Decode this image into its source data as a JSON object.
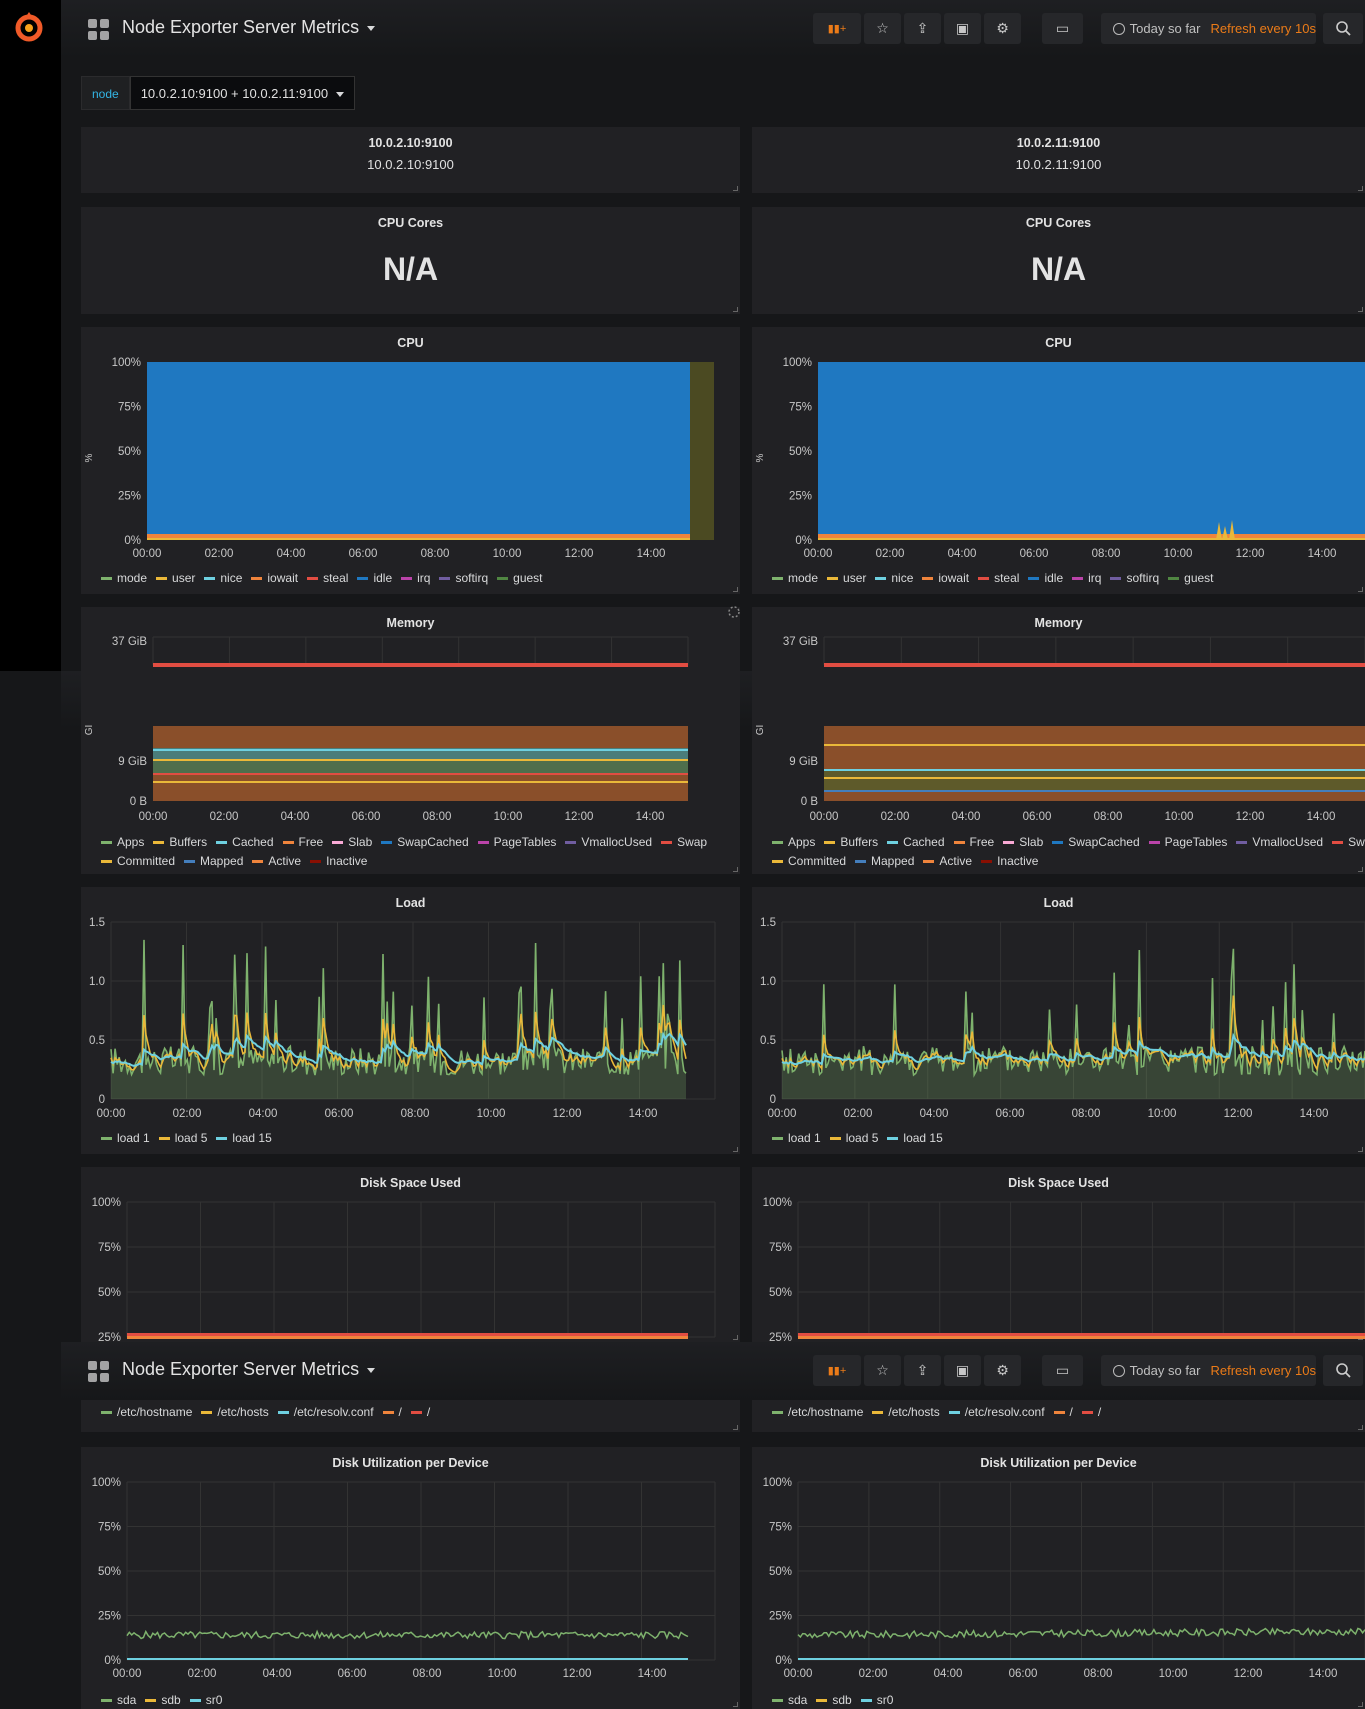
{
  "dashboard": {
    "title": "Node Exporter Server Metrics",
    "time_range": "Today so far",
    "refresh": "Refresh every 10s"
  },
  "icons": {
    "add_panel": "add-panel-icon",
    "star": "star-icon",
    "share": "share-icon",
    "save": "save-icon",
    "settings": "gear-icon",
    "tv": "tv-monitor-icon",
    "clock": "clock-icon",
    "zoom": "zoom-out-icon"
  },
  "variable": {
    "label": "node",
    "value": "10.0.2.10:9100 + 10.0.2.11:9100"
  },
  "nodes": [
    {
      "title": "10.0.2.10:9100",
      "value": "10.0.2.10:9100"
    },
    {
      "title": "10.0.2.11:9100",
      "value": "10.0.2.11:9100"
    }
  ],
  "cpu_cores": {
    "title": "CPU Cores",
    "value": "N/A"
  },
  "cpu": {
    "title": "CPU",
    "ylabel": "%",
    "yticks": [
      "100%",
      "75%",
      "50%",
      "25%",
      "0%"
    ],
    "xticks": [
      "00:00",
      "02:00",
      "04:00",
      "06:00",
      "08:00",
      "10:00",
      "12:00",
      "14:00"
    ],
    "legend": [
      {
        "name": "mode",
        "color": "#7eb26d"
      },
      {
        "name": "user",
        "color": "#eab839"
      },
      {
        "name": "nice",
        "color": "#6ed0e0"
      },
      {
        "name": "iowait",
        "color": "#ef843c"
      },
      {
        "name": "steal",
        "color": "#e24d42"
      },
      {
        "name": "idle",
        "color": "#1f78c1"
      },
      {
        "name": "irq",
        "color": "#ba43a9"
      },
      {
        "name": "softirq",
        "color": "#705da0"
      },
      {
        "name": "guest",
        "color": "#508642"
      }
    ]
  },
  "memory": {
    "title": "Memory",
    "ylabel": "GI",
    "ytop": "37 GiB",
    "ymid": "9 GiB",
    "ybottom": "0 B",
    "xticks": [
      "00:00",
      "02:00",
      "04:00",
      "06:00",
      "08:00",
      "10:00",
      "12:00",
      "14:00"
    ],
    "legend_row1": [
      {
        "name": "Apps",
        "color": "#7eb26d"
      },
      {
        "name": "Buffers",
        "color": "#eab839"
      },
      {
        "name": "Cached",
        "color": "#6ed0e0"
      },
      {
        "name": "Free",
        "color": "#ef843c"
      },
      {
        "name": "Slab",
        "color": "#f9a9d5"
      },
      {
        "name": "SwapCached",
        "color": "#1f78c1"
      },
      {
        "name": "PageTables",
        "color": "#ba43a9"
      },
      {
        "name": "VmallocUsed",
        "color": "#705da0"
      },
      {
        "name": "Swap",
        "color": "#e24d42"
      }
    ],
    "legend_row2": [
      {
        "name": "Committed",
        "color": "#eab839"
      },
      {
        "name": "Mapped",
        "color": "#447ebc"
      },
      {
        "name": "Active",
        "color": "#ef843c"
      },
      {
        "name": "Inactive",
        "color": "#890f02"
      }
    ]
  },
  "load": {
    "title": "Load",
    "yticks": [
      "1.5",
      "1.0",
      "0.5",
      "0"
    ],
    "xticks": [
      "00:00",
      "02:00",
      "04:00",
      "06:00",
      "08:00",
      "10:00",
      "12:00",
      "14:00"
    ],
    "legend": [
      {
        "name": "load 1",
        "color": "#7eb26d"
      },
      {
        "name": "load 5",
        "color": "#eab839"
      },
      {
        "name": "load 15",
        "color": "#6ed0e0"
      }
    ]
  },
  "disk_space": {
    "title": "Disk Space Used",
    "yticks": [
      "100%",
      "75%",
      "50%",
      "25%"
    ],
    "legend": [
      {
        "name": "/etc/hostname",
        "color": "#7eb26d"
      },
      {
        "name": "/etc/hosts",
        "color": "#eab839"
      },
      {
        "name": "/etc/resolv.conf",
        "color": "#6ed0e0"
      },
      {
        "name": "/",
        "color": "#ef843c"
      },
      {
        "name": "/",
        "color": "#e24d42"
      }
    ]
  },
  "disk_util": {
    "title": "Disk Utilization per Device",
    "yticks": [
      "100%",
      "75%",
      "50%",
      "25%",
      "0%"
    ],
    "xticks": [
      "00:00",
      "02:00",
      "04:00",
      "06:00",
      "08:00",
      "10:00",
      "12:00",
      "14:00"
    ],
    "legend": [
      {
        "name": "sda",
        "color": "#7eb26d"
      },
      {
        "name": "sdb",
        "color": "#eab839"
      },
      {
        "name": "sr0",
        "color": "#6ed0e0"
      }
    ]
  },
  "chart_data": [
    {
      "type": "area",
      "panel": "CPU",
      "node": "10.0.2.10:9100",
      "x": [
        "00:00",
        "02:00",
        "04:00",
        "06:00",
        "08:00",
        "10:00",
        "12:00",
        "14:00"
      ],
      "ylim": [
        0,
        100
      ],
      "series": [
        {
          "name": "user",
          "values": [
            2,
            2,
            2,
            2,
            2,
            2,
            2,
            2
          ]
        },
        {
          "name": "iowait",
          "values": [
            1,
            1,
            1,
            1,
            1,
            1,
            1,
            1
          ]
        },
        {
          "name": "idle",
          "values": [
            97,
            97,
            97,
            97,
            97,
            97,
            97,
            97
          ]
        }
      ]
    },
    {
      "type": "area",
      "panel": "CPU",
      "node": "10.0.2.11:9100",
      "x": [
        "00:00",
        "02:00",
        "04:00",
        "06:00",
        "08:00",
        "10:00",
        "12:00",
        "14:00"
      ],
      "ylim": [
        0,
        100
      ],
      "series": [
        {
          "name": "user",
          "values": [
            2,
            2,
            2,
            2,
            2,
            2,
            2,
            2
          ]
        },
        {
          "name": "iowait",
          "values": [
            1,
            1,
            1,
            1,
            1,
            1,
            1,
            1
          ]
        },
        {
          "name": "idle",
          "values": [
            97,
            97,
            97,
            97,
            97,
            97,
            97,
            97
          ]
        }
      ]
    },
    {
      "type": "line",
      "panel": "Load",
      "node": "10.0.2.10:9100",
      "x": [
        "00:00",
        "02:00",
        "04:00",
        "06:00",
        "08:00",
        "10:00",
        "12:00",
        "14:00"
      ],
      "ylim": [
        0,
        1.5
      ],
      "series": [
        {
          "name": "load 1",
          "values": [
            0.35,
            0.9,
            0.4,
            1.05,
            0.5,
            1.3,
            0.6,
            1.15
          ]
        },
        {
          "name": "load 5",
          "values": [
            0.3,
            0.45,
            0.3,
            0.5,
            0.35,
            0.6,
            0.4,
            0.65
          ]
        },
        {
          "name": "load 15",
          "values": [
            0.3,
            0.32,
            0.3,
            0.35,
            0.3,
            0.4,
            0.35,
            0.45
          ]
        }
      ]
    },
    {
      "type": "line",
      "panel": "Load",
      "node": "10.0.2.11:9100",
      "x": [
        "00:00",
        "02:00",
        "04:00",
        "06:00",
        "08:00",
        "10:00",
        "12:00",
        "14:00"
      ],
      "ylim": [
        0,
        1.5
      ],
      "series": [
        {
          "name": "load 1",
          "values": [
            0.35,
            0.9,
            0.4,
            1.0,
            0.5,
            1.2,
            1.3,
            0.8
          ]
        },
        {
          "name": "load 5",
          "values": [
            0.3,
            0.45,
            0.3,
            0.5,
            0.35,
            0.6,
            0.6,
            0.45
          ]
        },
        {
          "name": "load 15",
          "values": [
            0.3,
            0.32,
            0.3,
            0.35,
            0.3,
            0.4,
            0.45,
            0.38
          ]
        }
      ]
    },
    {
      "type": "line",
      "panel": "Disk Utilization per Device",
      "node": "10.0.2.10:9100",
      "x": [
        "00:00",
        "02:00",
        "04:00",
        "06:00",
        "08:00",
        "10:00",
        "12:00",
        "14:00"
      ],
      "ylim": [
        0,
        100
      ],
      "series": [
        {
          "name": "sda",
          "values": [
            13,
            14,
            13,
            14,
            13,
            14,
            14,
            13
          ]
        },
        {
          "name": "sr0",
          "values": [
            0,
            0,
            0,
            0,
            0,
            0,
            0,
            0
          ]
        }
      ]
    },
    {
      "type": "line",
      "panel": "Disk Utilization per Device",
      "node": "10.0.2.11:9100",
      "x": [
        "00:00",
        "02:00",
        "04:00",
        "06:00",
        "08:00",
        "10:00",
        "12:00",
        "14:00"
      ],
      "ylim": [
        0,
        100
      ],
      "series": [
        {
          "name": "sda",
          "values": [
            12,
            13,
            13,
            13,
            13,
            14,
            14,
            15
          ]
        },
        {
          "name": "sr0",
          "values": [
            0,
            0,
            0,
            0,
            0,
            0,
            0,
            0
          ]
        }
      ]
    }
  ]
}
